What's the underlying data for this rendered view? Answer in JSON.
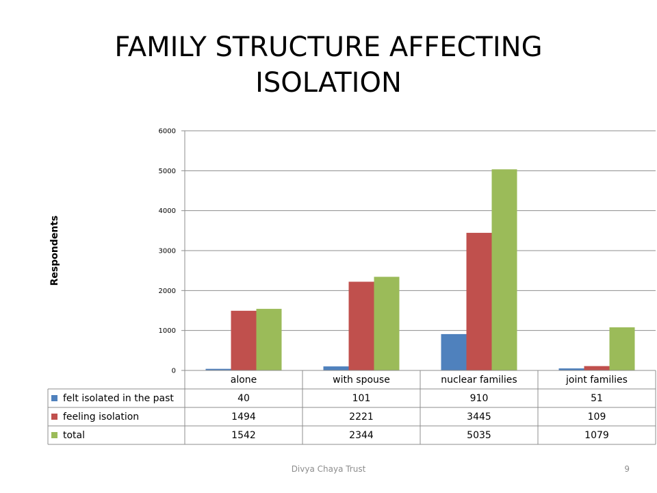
{
  "slide": {
    "title": "FAMILY STRUCTURE AFFECTING ISOLATION",
    "footer": "Divya Chaya Trust",
    "page_number": "9"
  },
  "colors": {
    "felt_isolated": "#4f81bd",
    "feeling_isolation": "#c0504d",
    "total": "#9bbb59",
    "grid": "#8c8c8c"
  },
  "chart_data": {
    "type": "bar",
    "title": "",
    "xlabel": "",
    "ylabel": "Respondents",
    "categories": [
      "alone",
      "with spouse",
      "nuclear families",
      "joint families"
    ],
    "series": [
      {
        "name": "felt isolated in the past",
        "values": [
          40,
          101,
          910,
          51
        ]
      },
      {
        "name": "feeling isolation",
        "values": [
          1494,
          2221,
          3445,
          109
        ]
      },
      {
        "name": "total",
        "values": [
          1542,
          2344,
          5035,
          1079
        ]
      }
    ],
    "ylim": [
      0,
      6000
    ],
    "yticks": [
      0,
      1000,
      2000,
      3000,
      4000,
      5000,
      6000
    ],
    "grid": true,
    "legend": "data-table"
  }
}
